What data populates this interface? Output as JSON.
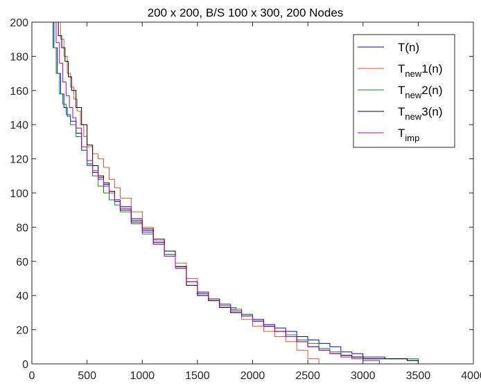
{
  "chart_data": {
    "type": "line",
    "title": "200 x 200, B/S 100 x 300, 200 Nodes",
    "xlabel": "",
    "ylabel": "",
    "xlim": [
      0,
      4000
    ],
    "ylim": [
      0,
      200
    ],
    "xticks": [
      0,
      500,
      1000,
      1500,
      2000,
      2500,
      3000,
      3500,
      4000
    ],
    "yticks": [
      0,
      20,
      40,
      60,
      80,
      100,
      120,
      140,
      160,
      180,
      200
    ],
    "grid": false,
    "legend_position": "top-right",
    "step": true,
    "series": [
      {
        "name": "T(n)",
        "legend_main": "T",
        "legend_sub": "",
        "legend_tail": "(n)",
        "color": "#0000ff",
        "x": [
          0,
          170,
          200,
          230,
          260,
          290,
          320,
          350,
          400,
          450,
          500,
          550,
          600,
          650,
          700,
          750,
          800,
          900,
          1000,
          1100,
          1200,
          1300,
          1400,
          1500,
          1600,
          1700,
          1800,
          1900,
          2000,
          2100,
          2200,
          2300,
          2400,
          2500,
          2600,
          2700,
          2800,
          2900,
          3000,
          3200,
          3400,
          3500
        ],
        "y": [
          200,
          200,
          185,
          170,
          158,
          150,
          145,
          142,
          135,
          125,
          117,
          112,
          109,
          105,
          100,
          96,
          92,
          85,
          78,
          71,
          64,
          56,
          48,
          41,
          38,
          35,
          32,
          29,
          26,
          23,
          21,
          19,
          16,
          14,
          12,
          10,
          7,
          6,
          4,
          3,
          2,
          0
        ]
      },
      {
        "name": "T_new1(n)",
        "legend_main": "T",
        "legend_sub": "new",
        "legend_tail": "1(n)",
        "color": "#e8542c",
        "x": [
          0,
          230,
          260,
          290,
          320,
          350,
          380,
          410,
          440,
          470,
          500,
          550,
          600,
          650,
          700,
          750,
          800,
          900,
          1000,
          1100,
          1200,
          1300,
          1400,
          1500,
          1600,
          1700,
          1800,
          1900,
          2000,
          2100,
          2200,
          2300,
          2400,
          2500,
          2600
        ],
        "y": [
          200,
          200,
          190,
          180,
          170,
          162,
          155,
          148,
          140,
          133,
          127,
          123,
          120,
          115,
          108,
          103,
          97,
          89,
          80,
          72,
          66,
          59,
          50,
          42,
          37,
          34,
          30,
          26,
          22,
          19,
          16,
          13,
          8,
          3,
          0
        ]
      },
      {
        "name": "T_new2(n)",
        "legend_main": "T",
        "legend_sub": "new",
        "legend_tail": "2(n)",
        "color": "#108d10",
        "x": [
          0,
          160,
          190,
          220,
          250,
          280,
          310,
          350,
          400,
          450,
          500,
          550,
          600,
          650,
          700,
          750,
          800,
          900,
          1000,
          1100,
          1200,
          1300,
          1400,
          1500,
          1600,
          1700,
          1800,
          1850,
          1900,
          2000,
          2100,
          2200,
          2300,
          2400,
          2500,
          2600,
          2700,
          2800,
          2900,
          3000,
          3200,
          3400,
          3500
        ],
        "y": [
          200,
          200,
          185,
          170,
          158,
          152,
          146,
          140,
          133,
          125,
          116,
          110,
          104,
          100,
          96,
          93,
          89,
          82,
          76,
          70,
          64,
          57,
          48,
          42,
          38,
          35,
          33,
          32,
          29,
          25,
          22,
          19,
          17,
          14,
          12,
          9,
          7,
          5,
          4,
          3,
          3,
          3,
          0
        ]
      },
      {
        "name": "T_new3(n)",
        "legend_main": "T",
        "legend_sub": "new",
        "legend_tail": "3(n)",
        "color": "#000000",
        "x": [
          0,
          210,
          240,
          270,
          300,
          330,
          360,
          400,
          450,
          500,
          550,
          600,
          650,
          700,
          750,
          800,
          900,
          1000,
          1100,
          1200,
          1300,
          1400,
          1500,
          1600,
          1700,
          1800,
          1900,
          2000,
          2100,
          2200,
          2300,
          2400,
          2500,
          2600,
          2700,
          2800,
          2900,
          3000,
          3200,
          3400,
          3500
        ],
        "y": [
          200,
          200,
          192,
          185,
          177,
          168,
          160,
          150,
          140,
          128,
          116,
          110,
          106,
          101,
          95,
          90,
          83,
          79,
          73,
          66,
          57,
          46,
          40,
          37,
          33,
          30,
          28,
          25,
          22,
          19,
          16,
          13,
          10,
          8,
          6,
          5,
          4,
          3,
          3,
          2,
          0
        ]
      },
      {
        "name": "T_imp",
        "legend_main": "T",
        "legend_sub": "imp",
        "legend_tail": "",
        "color": "#b000b0",
        "x": [
          0,
          190,
          220,
          250,
          280,
          310,
          340,
          370,
          400,
          450,
          500,
          550,
          600,
          650,
          700,
          750,
          800,
          900,
          1000,
          1100,
          1200,
          1300,
          1400,
          1500,
          1600,
          1700,
          1800,
          1900,
          2000,
          2100,
          2200,
          2300,
          2400,
          2500,
          2600,
          2700,
          2800,
          2900,
          3000,
          3150
        ],
        "y": [
          200,
          200,
          188,
          176,
          165,
          157,
          150,
          144,
          138,
          127,
          119,
          113,
          108,
          104,
          100,
          95,
          91,
          84,
          77,
          70,
          63,
          56,
          48,
          42,
          38,
          34,
          31,
          28,
          25,
          22,
          19,
          16,
          13,
          10,
          8,
          6,
          4,
          3,
          2,
          0
        ]
      }
    ]
  }
}
